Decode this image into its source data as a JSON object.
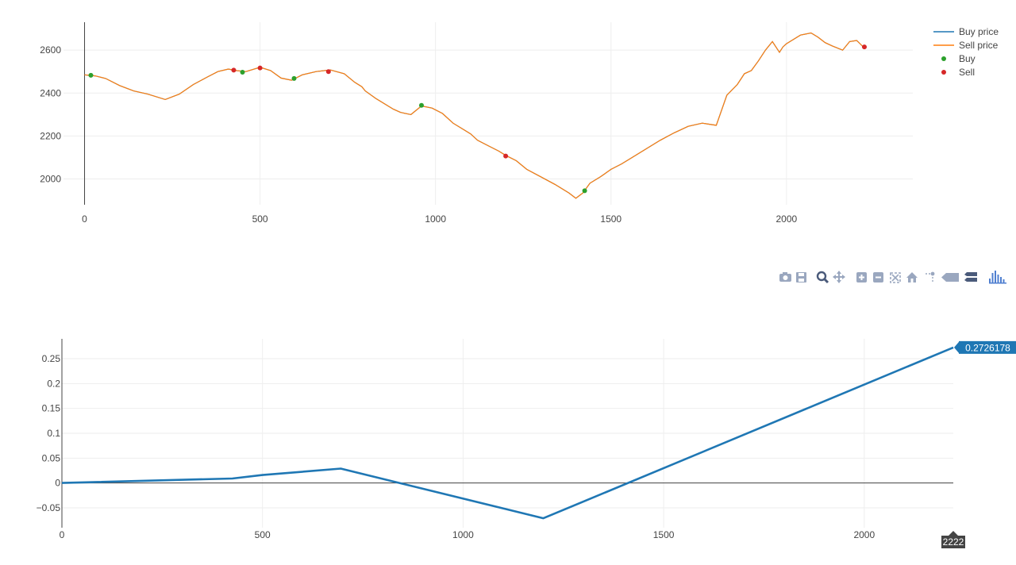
{
  "chart_data": [
    {
      "type": "line",
      "title": "",
      "xlabel": "",
      "ylabel": "",
      "xlim": [
        -60,
        2360
      ],
      "ylim": [
        1880,
        2730
      ],
      "xticks": [
        0,
        500,
        1000,
        1500,
        2000
      ],
      "yticks": [
        2000,
        2200,
        2400,
        2600
      ],
      "grid": true,
      "legend": "top-right",
      "series": [
        {
          "name": "Buy price",
          "color": "#1f77b4",
          "x": [
            0,
            30,
            60,
            100,
            140,
            180,
            230,
            270,
            310,
            350,
            380,
            410,
            430,
            460,
            500,
            530,
            560,
            590,
            620,
            660,
            700,
            740,
            770,
            790,
            800,
            830,
            860,
            880,
            900,
            930,
            960,
            990,
            1020,
            1050,
            1080,
            1100,
            1120,
            1150,
            1180,
            1200,
            1230,
            1260,
            1300,
            1340,
            1380,
            1400,
            1420,
            1440,
            1470,
            1500,
            1530,
            1560,
            1600,
            1640,
            1680,
            1720,
            1760,
            1800,
            1830,
            1860,
            1880,
            1900,
            1920,
            1940,
            1960,
            1980,
            1990,
            2000,
            2020,
            2040,
            2070,
            2090,
            2110,
            2130,
            2160,
            2180,
            2200,
            2222
          ],
          "values": [
            2485,
            2480,
            2468,
            2435,
            2410,
            2395,
            2370,
            2395,
            2440,
            2475,
            2500,
            2512,
            2505,
            2500,
            2520,
            2505,
            2470,
            2460,
            2485,
            2500,
            2508,
            2490,
            2450,
            2430,
            2410,
            2375,
            2345,
            2325,
            2310,
            2300,
            2340,
            2330,
            2305,
            2260,
            2230,
            2210,
            2180,
            2155,
            2130,
            2110,
            2085,
            2045,
            2010,
            1975,
            1935,
            1910,
            1935,
            1980,
            2010,
            2045,
            2070,
            2100,
            2140,
            2180,
            2215,
            2245,
            2260,
            2250,
            2390,
            2440,
            2490,
            2505,
            2550,
            2600,
            2640,
            2590,
            2615,
            2630,
            2650,
            2670,
            2680,
            2660,
            2635,
            2620,
            2600,
            2640,
            2645,
            2610
          ]
        },
        {
          "name": "Sell price",
          "color": "#ff7f0e",
          "x": [
            0,
            30,
            60,
            100,
            140,
            180,
            230,
            270,
            310,
            350,
            380,
            410,
            430,
            460,
            500,
            530,
            560,
            590,
            620,
            660,
            700,
            740,
            770,
            790,
            800,
            830,
            860,
            880,
            900,
            930,
            960,
            990,
            1020,
            1050,
            1080,
            1100,
            1120,
            1150,
            1180,
            1200,
            1230,
            1260,
            1300,
            1340,
            1380,
            1400,
            1420,
            1440,
            1470,
            1500,
            1530,
            1560,
            1600,
            1640,
            1680,
            1720,
            1760,
            1800,
            1830,
            1860,
            1880,
            1900,
            1920,
            1940,
            1960,
            1980,
            1990,
            2000,
            2020,
            2040,
            2070,
            2090,
            2110,
            2130,
            2160,
            2180,
            2200,
            2222
          ],
          "values": [
            2485,
            2480,
            2468,
            2435,
            2410,
            2395,
            2370,
            2395,
            2440,
            2475,
            2500,
            2512,
            2505,
            2500,
            2520,
            2505,
            2470,
            2460,
            2485,
            2500,
            2508,
            2490,
            2450,
            2430,
            2410,
            2375,
            2345,
            2325,
            2310,
            2300,
            2340,
            2330,
            2305,
            2260,
            2230,
            2210,
            2180,
            2155,
            2130,
            2110,
            2085,
            2045,
            2010,
            1975,
            1935,
            1910,
            1935,
            1980,
            2010,
            2045,
            2070,
            2100,
            2140,
            2180,
            2215,
            2245,
            2260,
            2250,
            2390,
            2440,
            2490,
            2505,
            2550,
            2600,
            2640,
            2590,
            2615,
            2630,
            2650,
            2670,
            2680,
            2660,
            2635,
            2620,
            2600,
            2640,
            2645,
            2610
          ]
        },
        {
          "name": "Buy",
          "type": "scatter",
          "color": "#2ca02c",
          "x": [
            18,
            450,
            597,
            960,
            1425
          ],
          "values": [
            2483,
            2497,
            2468,
            2343,
            1945
          ]
        },
        {
          "name": "Sell",
          "type": "scatter",
          "color": "#d62728",
          "x": [
            425,
            500,
            695,
            1200,
            2222
          ],
          "values": [
            2507,
            2517,
            2500,
            2107,
            2615
          ]
        }
      ]
    },
    {
      "type": "line",
      "title": "",
      "xlabel": "",
      "ylabel": "",
      "xlim": [
        0,
        2222
      ],
      "ylim": [
        -0.09,
        0.29
      ],
      "xticks": [
        0,
        500,
        1000,
        1500,
        2000
      ],
      "yticks": [
        -0.05,
        0,
        0.05,
        0.1,
        0.15,
        0.2,
        0.25
      ],
      "ytick_labels": [
        "−0.05",
        "0",
        "0.05",
        "0.1",
        "0.15",
        "0.2",
        "0.25"
      ],
      "grid": true,
      "series": [
        {
          "color": "#1f77b4",
          "x": [
            0,
            425,
            500,
            695,
            1200,
            2222
          ],
          "values": [
            0,
            0.009,
            0.016,
            0.029,
            -0.071,
            0.2726178
          ]
        }
      ],
      "hover": {
        "y_label": "0.2726178",
        "x_label": "2222"
      }
    }
  ],
  "modebar": {
    "icons": [
      "camera-icon",
      "save-icon",
      "zoom-icon",
      "pan-icon",
      "zoom-in-icon",
      "zoom-out-icon",
      "autoscale-icon",
      "reset-axes-icon",
      "spike-lines-icon",
      "hover-closest-icon",
      "hover-compare-icon",
      "plotly-logo-icon"
    ]
  }
}
